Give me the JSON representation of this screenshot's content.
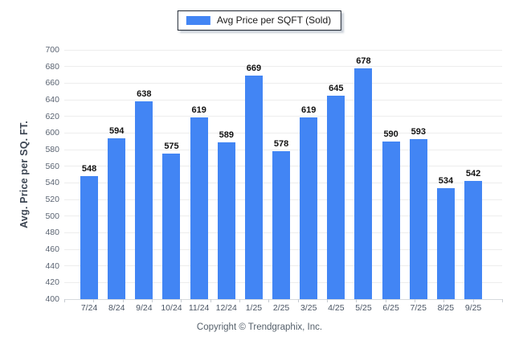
{
  "chart_data": {
    "type": "bar",
    "title": "",
    "legend": [
      "Avg Price per SQFT (Sold)"
    ],
    "legend_position": "top",
    "categories": [
      "7/24",
      "8/24",
      "9/24",
      "10/24",
      "11/24",
      "12/24",
      "1/25",
      "2/25",
      "3/25",
      "4/25",
      "5/25",
      "6/25",
      "7/25",
      "8/25",
      "9/25"
    ],
    "values": [
      548,
      594,
      638,
      575,
      619,
      589,
      669,
      578,
      619,
      645,
      678,
      590,
      593,
      534,
      542
    ],
    "xlabel": "",
    "ylabel": "Avg. Price per SQ. FT.",
    "ylim": [
      400,
      700
    ],
    "ytick_step": 20,
    "grid": true,
    "bar_color": "#4285F4",
    "value_labels_shown": true
  },
  "footer": {
    "copyright": "Copyright © Trendgraphix, Inc."
  }
}
